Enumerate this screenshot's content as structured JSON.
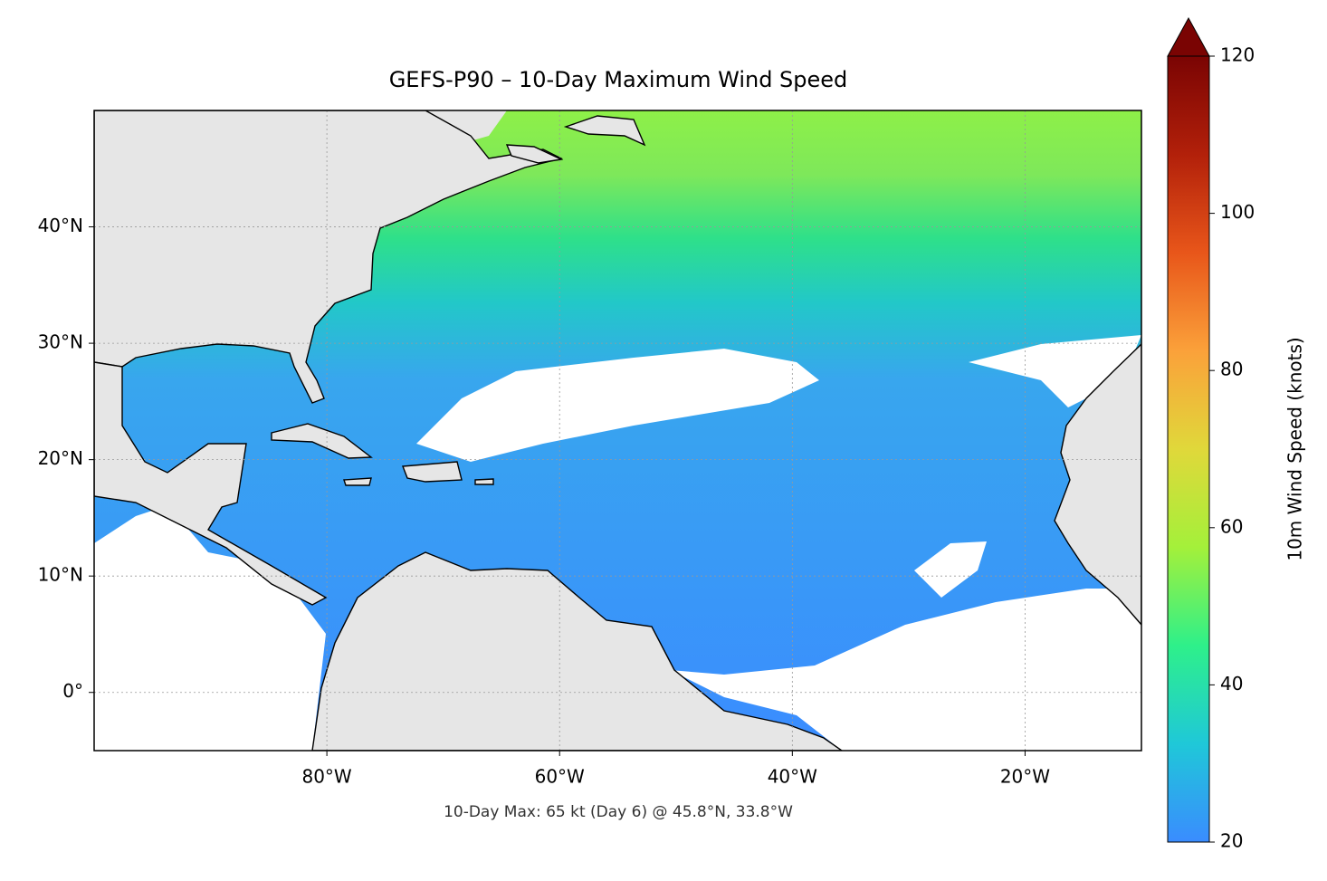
{
  "title": "GEFS-P90 – 10-Day Maximum Wind Speed",
  "footnote": "10-Day Max: 65 kt (Day 6) @ 45.8°N, 33.8°W",
  "map": {
    "xlim": [
      -100,
      -10
    ],
    "ylim": [
      -5,
      50
    ],
    "xticks": [
      {
        "value": -80,
        "label": "80°W"
      },
      {
        "value": -60,
        "label": "60°W"
      },
      {
        "value": -40,
        "label": "40°W"
      },
      {
        "value": -20,
        "label": "20°W"
      }
    ],
    "yticks": [
      {
        "value": 0,
        "label": "0°"
      },
      {
        "value": 10,
        "label": "10°N"
      },
      {
        "value": 20,
        "label": "20°N"
      },
      {
        "value": 30,
        "label": "30°N"
      },
      {
        "value": 40,
        "label": "40°N"
      }
    ],
    "grid": true
  },
  "colorbar": {
    "label": "10m Wind Speed (knots)",
    "lim": [
      20,
      120
    ],
    "ticks": [
      20,
      40,
      60,
      80,
      100,
      120
    ],
    "colors": [
      "#3a8cff",
      "#1fc8d8",
      "#2ef08a",
      "#a4f03a",
      "#e0d83a",
      "#fba13a",
      "#e8561a",
      "#b2200a",
      "#7a0403"
    ]
  }
}
